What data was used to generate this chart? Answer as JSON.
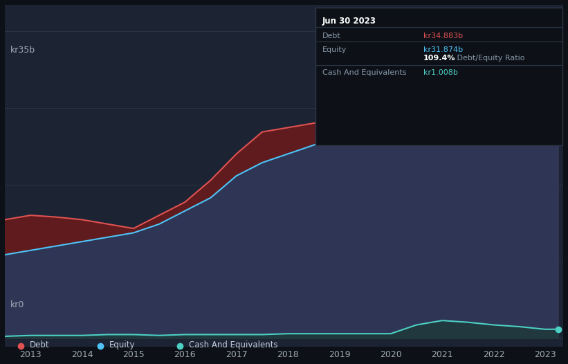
{
  "bg_color": "#0d1117",
  "chart_bg": "#161b22",
  "plot_bg": "#1c2333",
  "grid_color": "#2d3748",
  "title_year": "Jun 30 2023",
  "tooltip": {
    "date": "Jun 30 2023",
    "debt_label": "Debt",
    "debt_value": "kr34.883b",
    "equity_label": "Equity",
    "equity_value": "kr31.874b",
    "ratio": "109.4% Debt/Equity Ratio",
    "cash_label": "Cash And Equivalents",
    "cash_value": "kr1.008b"
  },
  "ylabel_top": "kr35b",
  "ylabel_bottom": "kr0",
  "x_ticks": [
    2013,
    2014,
    2015,
    2016,
    2017,
    2018,
    2019,
    2020,
    2021,
    2022,
    2023
  ],
  "debt_color": "#e05252",
  "equity_color": "#4fc3f7",
  "cash_color": "#4dd0c4",
  "debt_fill": "#6b1a1a",
  "equity_fill": "#2a3a5c",
  "cash_fill": "#1a3a35",
  "years": [
    2012.5,
    2013.0,
    2013.5,
    2014.0,
    2014.5,
    2015.0,
    2015.5,
    2016.0,
    2016.5,
    2017.0,
    2017.5,
    2018.0,
    2018.5,
    2019.0,
    2019.5,
    2020.0,
    2020.5,
    2021.0,
    2021.5,
    2022.0,
    2022.5,
    2023.0,
    2023.25
  ],
  "debt": [
    13.5,
    14.0,
    13.8,
    13.5,
    13.0,
    12.5,
    14.0,
    15.5,
    18.0,
    21.0,
    23.5,
    24.0,
    24.5,
    25.0,
    25.5,
    26.5,
    28.5,
    29.0,
    28.0,
    29.5,
    31.0,
    33.5,
    34.883
  ],
  "equity": [
    9.5,
    10.0,
    10.5,
    11.0,
    11.5,
    12.0,
    13.0,
    14.5,
    16.0,
    18.5,
    20.0,
    21.0,
    22.0,
    23.0,
    23.5,
    24.5,
    22.5,
    22.0,
    22.5,
    26.0,
    28.5,
    30.5,
    31.874
  ],
  "cash": [
    0.2,
    0.3,
    0.3,
    0.3,
    0.4,
    0.4,
    0.3,
    0.4,
    0.4,
    0.4,
    0.4,
    0.5,
    0.5,
    0.5,
    0.5,
    0.5,
    1.5,
    2.0,
    1.8,
    1.5,
    1.3,
    1.0,
    1.008
  ],
  "legend_items": [
    {
      "label": "Debt",
      "color": "#e05252"
    },
    {
      "label": "Equity",
      "color": "#4fc3f7"
    },
    {
      "label": "Cash And Equivalents",
      "color": "#4dd0c4"
    }
  ]
}
